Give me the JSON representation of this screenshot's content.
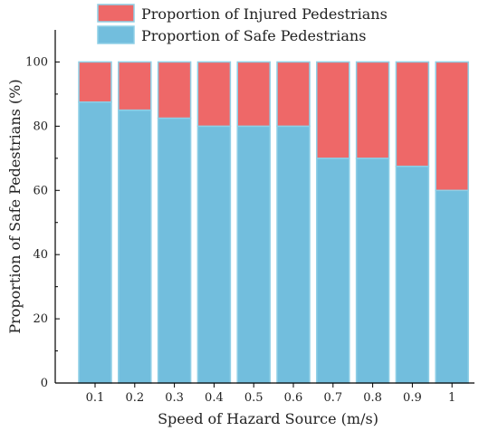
{
  "chart_data": {
    "type": "bar",
    "stacked": true,
    "categories": [
      "0.1",
      "0.2",
      "0.3",
      "0.4",
      "0.5",
      "0.6",
      "0.7",
      "0.8",
      "0.9",
      "1"
    ],
    "series": [
      {
        "name": "Proportion of Safe Pedestrians",
        "color": "#72bedd",
        "values": [
          87.5,
          85,
          82.5,
          80,
          80,
          80,
          70,
          70,
          67.5,
          60
        ]
      },
      {
        "name": "Proportion of Injured Pedestrians",
        "color": "#ee6868",
        "values": [
          12.5,
          15,
          17.5,
          20,
          20,
          20,
          30,
          30,
          32.5,
          40
        ]
      }
    ],
    "xlabel": "Speed of Hazard Source (m/s)",
    "ylabel": "Proportion of Safe Pedestrians (%)",
    "ylim": [
      0,
      110
    ],
    "yticks": [
      0,
      20,
      40,
      60,
      80,
      100
    ],
    "grid": false,
    "legend_position": "top"
  }
}
